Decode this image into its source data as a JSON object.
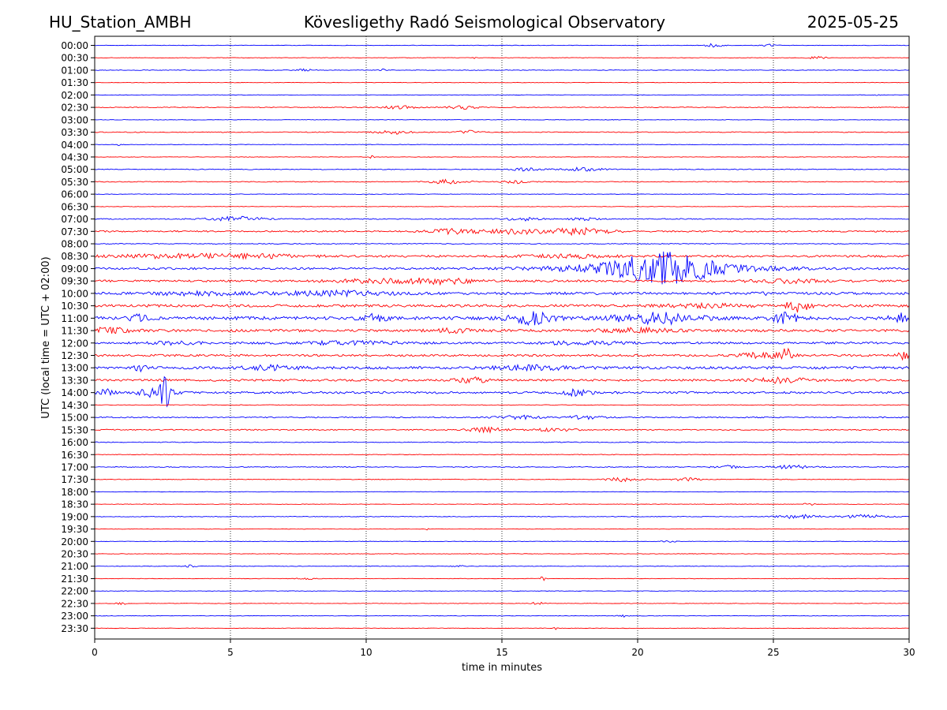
{
  "header": {
    "station": "HU_Station_AMBH",
    "observatory": "Kövesligethy Radó Seismological Observatory",
    "date": "2025-05-25"
  },
  "chart_data": {
    "type": "line",
    "title": "Kövesligethy Radó Seismological Observatory",
    "xlabel": "time in minutes",
    "ylabel": "UTC (local time = UTC + 02:00)",
    "xlim": [
      0,
      30
    ],
    "x_ticks": [
      0,
      5,
      10,
      15,
      20,
      25,
      30
    ],
    "grid": "vertical dotted lines at 5-minute ticks",
    "colors": {
      "even_row": "#0000ff",
      "odd_row": "#ff0000",
      "grid": "#000000"
    },
    "rows": [
      {
        "label": "00:00",
        "base": 0.3,
        "bursts": [
          [
            22.8,
            0.3,
            2.5
          ],
          [
            24.8,
            0.3,
            1.5
          ]
        ]
      },
      {
        "label": "00:30",
        "base": 0.3,
        "bursts": [
          [
            13.9,
            0.1,
            1.5
          ],
          [
            26.6,
            0.4,
            1.5
          ]
        ]
      },
      {
        "label": "01:00",
        "base": 0.4,
        "bursts": [
          [
            7.8,
            0.3,
            1.5
          ],
          [
            10.6,
            0.1,
            1.5
          ]
        ]
      },
      {
        "label": "01:30",
        "base": 0.3,
        "bursts": []
      },
      {
        "label": "02:00",
        "base": 0.3,
        "bursts": [
          [
            28.8,
            0.1,
            1.5
          ]
        ]
      },
      {
        "label": "02:30",
        "base": 0.5,
        "bursts": [
          [
            11.2,
            0.6,
            2.0
          ],
          [
            13.5,
            0.6,
            2.0
          ]
        ]
      },
      {
        "label": "03:00",
        "base": 0.3,
        "bursts": []
      },
      {
        "label": "03:30",
        "base": 0.5,
        "bursts": [
          [
            11.0,
            0.6,
            2.5
          ],
          [
            13.8,
            0.4,
            2.0
          ]
        ]
      },
      {
        "label": "04:00",
        "base": 0.3,
        "bursts": [
          [
            0.9,
            0.1,
            1.5
          ]
        ]
      },
      {
        "label": "04:30",
        "base": 0.3,
        "bursts": [
          [
            10.2,
            0.1,
            1.5
          ]
        ]
      },
      {
        "label": "05:00",
        "base": 0.5,
        "bursts": [
          [
            15.9,
            0.5,
            2.0
          ],
          [
            17.9,
            0.8,
            2.0
          ]
        ]
      },
      {
        "label": "05:30",
        "base": 0.5,
        "bursts": [
          [
            13.0,
            0.7,
            2.5
          ],
          [
            15.5,
            0.5,
            2.0
          ]
        ]
      },
      {
        "label": "06:00",
        "base": 0.3,
        "bursts": []
      },
      {
        "label": "06:30",
        "base": 0.3,
        "bursts": []
      },
      {
        "label": "07:00",
        "base": 0.6,
        "bursts": [
          [
            5.2,
            1.0,
            3.0
          ],
          [
            15.8,
            0.6,
            2.0
          ],
          [
            18.0,
            0.5,
            1.5
          ]
        ]
      },
      {
        "label": "07:30",
        "base": 0.9,
        "bursts": [
          [
            13.3,
            1.0,
            3.0
          ],
          [
            15.5,
            1.0,
            3.0
          ],
          [
            17.8,
            1.2,
            4.0
          ]
        ]
      },
      {
        "label": "08:00",
        "base": 0.5,
        "bursts": []
      },
      {
        "label": "08:30",
        "base": 1.3,
        "bursts": [
          [
            2.8,
            2.0,
            2.0
          ],
          [
            6.0,
            2.0,
            2.0
          ],
          [
            17.5,
            1.5,
            2.0
          ]
        ]
      },
      {
        "label": "09:00",
        "base": 1.3,
        "bursts": [
          [
            18.8,
            2.5,
            4.0
          ],
          [
            21.0,
            1.5,
            15.0
          ],
          [
            22.0,
            3.0,
            5.0
          ]
        ]
      },
      {
        "label": "09:30",
        "base": 1.3,
        "bursts": [
          [
            10.5,
            2.0,
            2.0
          ],
          [
            12.8,
            1.2,
            3.0
          ],
          [
            25.5,
            1.5,
            2.0
          ]
        ]
      },
      {
        "label": "10:00",
        "base": 1.6,
        "bursts": [
          [
            3.8,
            1.5,
            2.0
          ],
          [
            8.8,
            2.0,
            2.5
          ],
          [
            24.6,
            0.2,
            2.0
          ]
        ]
      },
      {
        "label": "10:30",
        "base": 1.6,
        "bursts": [
          [
            25.9,
            0.4,
            8.0
          ],
          [
            22.5,
            1.5,
            2.0
          ]
        ]
      },
      {
        "label": "11:00",
        "base": 2.0,
        "bursts": [
          [
            1.6,
            0.3,
            4.0
          ],
          [
            10.3,
            0.5,
            4.0
          ],
          [
            16.1,
            0.8,
            7.0
          ],
          [
            20.7,
            1.5,
            7.0
          ],
          [
            25.5,
            0.5,
            6.0
          ],
          [
            29.6,
            0.3,
            6.0
          ]
        ]
      },
      {
        "label": "11:30",
        "base": 1.6,
        "bursts": [
          [
            0.5,
            0.8,
            3.0
          ],
          [
            13.2,
            0.8,
            2.0
          ],
          [
            20.0,
            1.2,
            2.5
          ]
        ]
      },
      {
        "label": "12:00",
        "base": 1.3,
        "bursts": [
          [
            9.5,
            2.0,
            2.0
          ],
          [
            3.0,
            0.8,
            2.0
          ],
          [
            18.0,
            1.5,
            2.0
          ]
        ]
      },
      {
        "label": "12:30",
        "base": 1.3,
        "bursts": [
          [
            24.5,
            1.0,
            3.0
          ],
          [
            25.5,
            0.2,
            8.0
          ],
          [
            29.8,
            0.2,
            5.0
          ]
        ]
      },
      {
        "label": "13:00",
        "base": 1.6,
        "bursts": [
          [
            1.7,
            0.2,
            5.0
          ],
          [
            6.5,
            1.0,
            2.5
          ],
          [
            16.2,
            1.5,
            2.5
          ]
        ]
      },
      {
        "label": "13:30",
        "base": 1.3,
        "bursts": [
          [
            13.9,
            0.6,
            3.0
          ],
          [
            25.3,
            1.0,
            3.0
          ]
        ]
      },
      {
        "label": "14:00",
        "base": 1.3,
        "bursts": [
          [
            0.4,
            0.3,
            4.0
          ],
          [
            2.6,
            0.15,
            22.0
          ],
          [
            2.2,
            0.7,
            5.0
          ],
          [
            17.8,
            0.5,
            4.0
          ]
        ]
      },
      {
        "label": "14:30",
        "base": 0.4,
        "bursts": []
      },
      {
        "label": "15:00",
        "base": 0.7,
        "bursts": [
          [
            15.5,
            0.8,
            2.5
          ],
          [
            18.0,
            0.8,
            2.0
          ]
        ]
      },
      {
        "label": "15:30",
        "base": 0.7,
        "bursts": [
          [
            14.5,
            0.8,
            3.0
          ],
          [
            17.0,
            0.8,
            2.0
          ]
        ]
      },
      {
        "label": "16:00",
        "base": 0.5,
        "bursts": []
      },
      {
        "label": "16:30",
        "base": 0.4,
        "bursts": []
      },
      {
        "label": "17:00",
        "base": 0.5,
        "bursts": [
          [
            23.2,
            0.5,
            2.0
          ],
          [
            25.7,
            0.7,
            2.5
          ]
        ]
      },
      {
        "label": "17:30",
        "base": 0.4,
        "bursts": [
          [
            19.5,
            0.6,
            3.0
          ],
          [
            21.8,
            0.5,
            2.0
          ]
        ]
      },
      {
        "label": "18:00",
        "base": 0.3,
        "bursts": []
      },
      {
        "label": "18:30",
        "base": 0.3,
        "bursts": [
          [
            26.3,
            0.2,
            1.5
          ]
        ]
      },
      {
        "label": "19:00",
        "base": 0.4,
        "bursts": [
          [
            26.0,
            0.8,
            2.5
          ],
          [
            28.4,
            0.8,
            2.5
          ]
        ]
      },
      {
        "label": "19:30",
        "base": 0.3,
        "bursts": [
          [
            12.3,
            0.1,
            1.5
          ]
        ]
      },
      {
        "label": "20:00",
        "base": 0.3,
        "bursts": [
          [
            21.2,
            0.3,
            1.5
          ]
        ]
      },
      {
        "label": "20:30",
        "base": 0.3,
        "bursts": []
      },
      {
        "label": "21:00",
        "base": 0.3,
        "bursts": [
          [
            3.5,
            0.2,
            1.5
          ],
          [
            13.4,
            0.2,
            1.5
          ]
        ]
      },
      {
        "label": "21:30",
        "base": 0.3,
        "bursts": [
          [
            7.8,
            0.3,
            1.5
          ],
          [
            16.5,
            0.1,
            2.5
          ]
        ]
      },
      {
        "label": "22:00",
        "base": 0.3,
        "bursts": []
      },
      {
        "label": "22:30",
        "base": 0.3,
        "bursts": [
          [
            1.0,
            0.2,
            1.5
          ],
          [
            16.3,
            0.3,
            1.5
          ]
        ]
      },
      {
        "label": "23:00",
        "base": 0.3,
        "bursts": [
          [
            19.5,
            0.2,
            1.5
          ]
        ]
      },
      {
        "label": "23:30",
        "base": 0.3,
        "bursts": [
          [
            17.0,
            0.1,
            1.5
          ]
        ]
      }
    ]
  }
}
